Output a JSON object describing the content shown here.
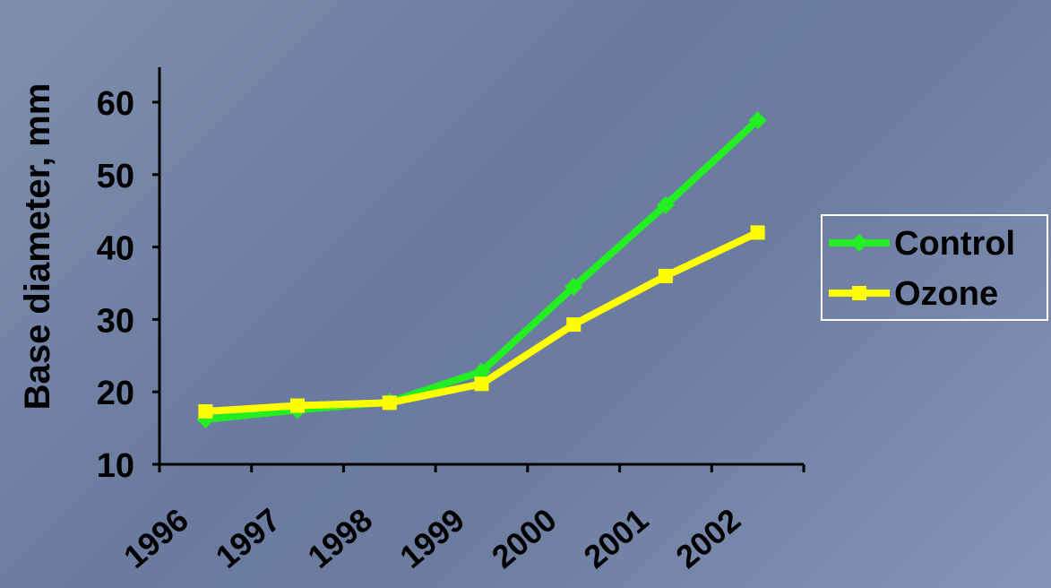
{
  "chart_data": {
    "type": "line",
    "title": "",
    "xlabel": "",
    "ylabel": "Base  diameter,  mm",
    "categories": [
      "1996",
      "1997",
      "1998",
      "1999",
      "2000",
      "2001",
      "2002"
    ],
    "ylim": [
      10,
      60
    ],
    "yticks": [
      10,
      20,
      30,
      40,
      50,
      60
    ],
    "grid": false,
    "legend_position": "right",
    "series": [
      {
        "name": "Control",
        "values": [
          16.2,
          17.5,
          18.6,
          22.8,
          34.5,
          45.8,
          57.5
        ],
        "color": "#22ee22",
        "marker": "diamond"
      },
      {
        "name": "Ozone",
        "values": [
          17.3,
          18.1,
          18.5,
          21.1,
          29.3,
          36.0,
          42.0
        ],
        "color": "#ffff00",
        "marker": "square"
      }
    ]
  }
}
